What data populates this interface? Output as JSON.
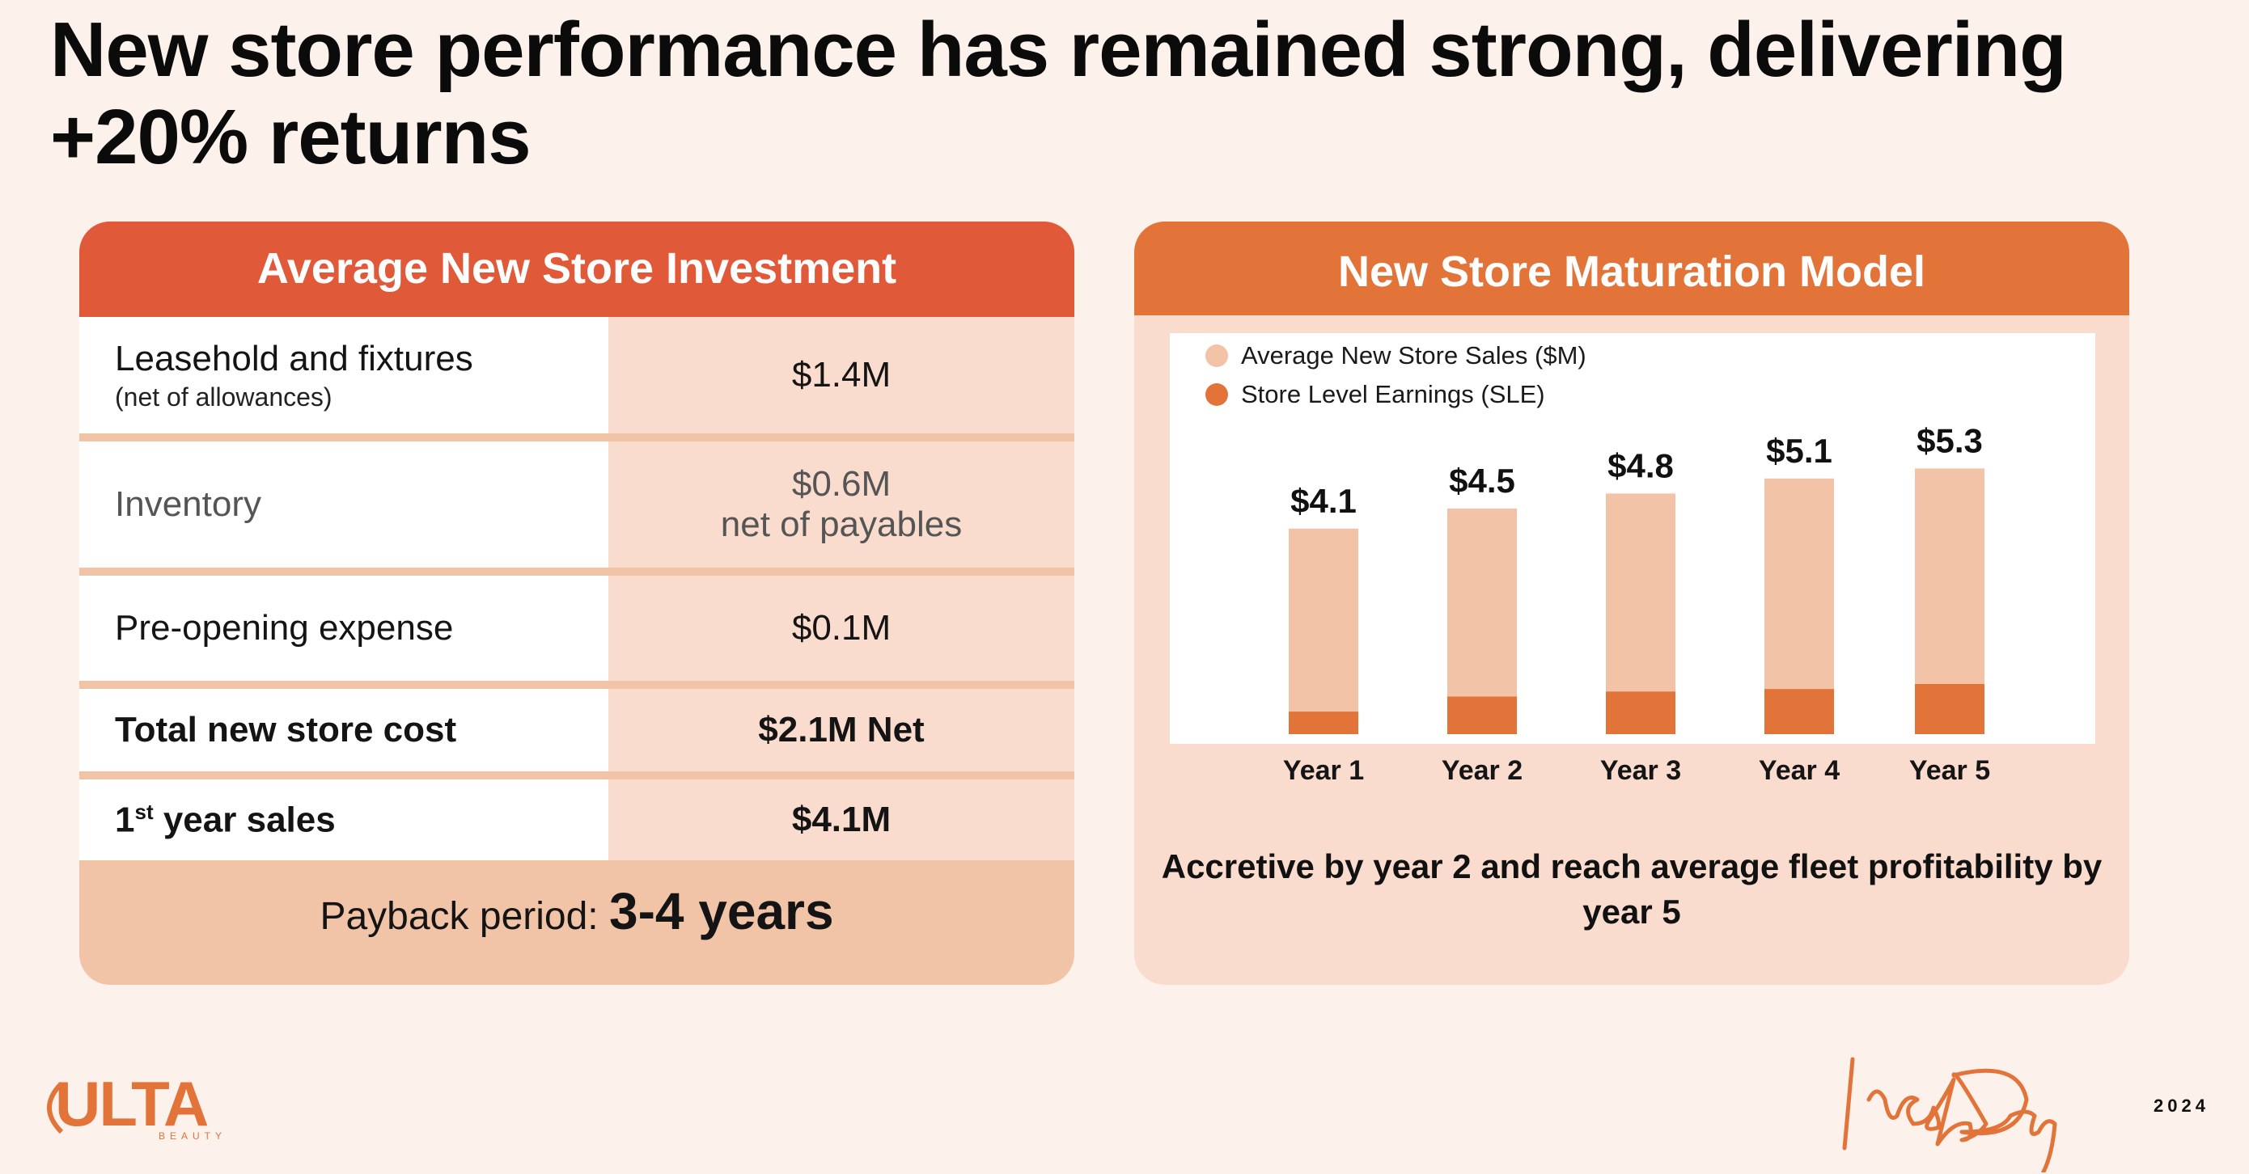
{
  "title": "New store performance has remained strong, delivering +20% returns",
  "investment": {
    "header": "Average New Store  Investment",
    "rows": [
      {
        "label": "Leasehold and fixtures",
        "sublabel": "(net of allowances)",
        "value": "$1.4M",
        "value2": ""
      },
      {
        "label": "Inventory",
        "sublabel": "",
        "value": "$0.6M",
        "value2": "net of payables"
      },
      {
        "label": "Pre-opening expense",
        "sublabel": "",
        "value": "$0.1M",
        "value2": ""
      },
      {
        "label": "Total new store cost",
        "sublabel": "",
        "value": "$2.1M Net",
        "value2": ""
      },
      {
        "label_prefix": "1",
        "label_sup": "st",
        "label_rest": " year sales",
        "value": "$4.1M"
      }
    ],
    "payback_label": "Payback period: ",
    "payback_value": "3-4 years"
  },
  "maturation": {
    "header": "New Store Maturation Model",
    "note": "Accretive by year 2 and reach average fleet profitability by year 5"
  },
  "chart_data": {
    "type": "bar",
    "categories": [
      "Year 1",
      "Year 2",
      "Year 3",
      "Year 4",
      "Year 5"
    ],
    "series": [
      {
        "name": "Average New Store Sales ($M)",
        "values": [
          4.1,
          4.5,
          4.8,
          5.1,
          5.3
        ],
        "color": "#f2c3a6"
      },
      {
        "name": "Store Level Earnings (SLE)",
        "values": [
          0.45,
          0.75,
          0.85,
          0.9,
          1.0
        ],
        "color": "#e2743a"
      }
    ],
    "data_labels": [
      "$4.1",
      "$4.5",
      "$4.8",
      "$5.1",
      "$5.3"
    ],
    "legend_position": "top-left",
    "ylim": [
      0,
      6
    ]
  },
  "footer": {
    "logo": "ULTA",
    "logo_sub": "BEAUTY",
    "event": "Investor Day",
    "year": "2024"
  },
  "colors": {
    "background": "#fcf1eb",
    "left_header": "#e05a3a",
    "right_header": "#e2743a",
    "accent_light": "#f9dccd",
    "accent_mid": "#f1c4a8"
  }
}
